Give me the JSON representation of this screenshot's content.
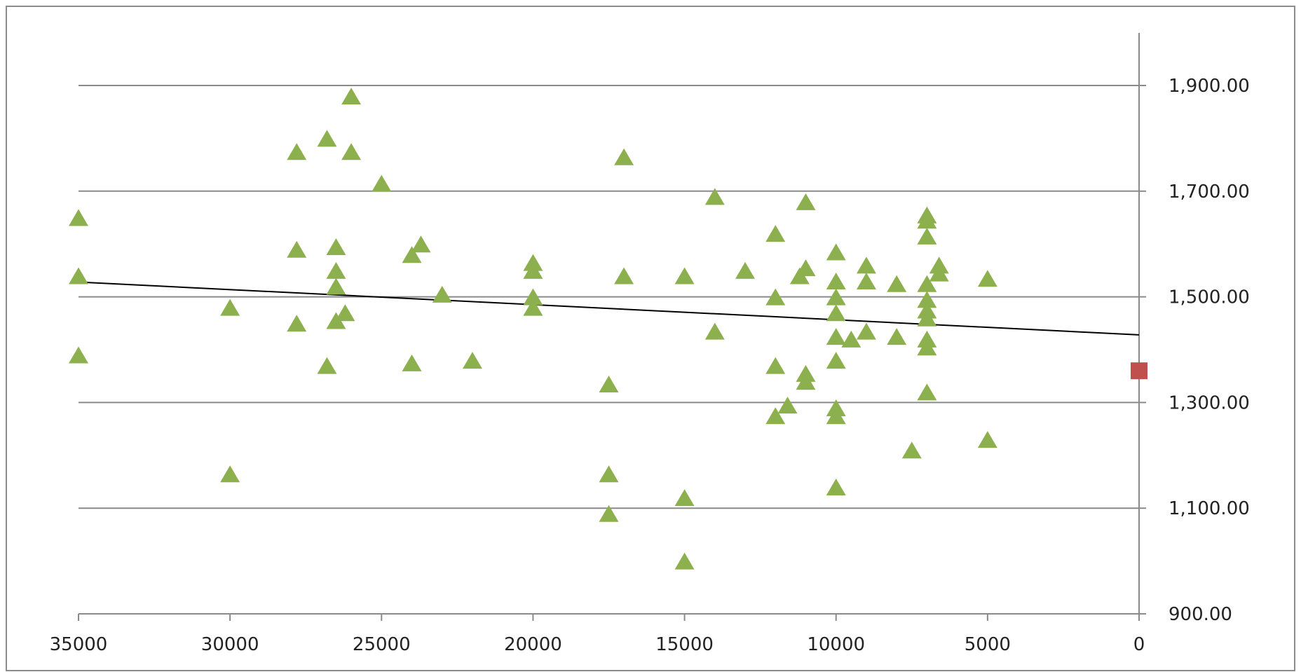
{
  "chart_data": {
    "type": "scatter",
    "title": "",
    "xlabel": "",
    "ylabel": "",
    "x_axis": {
      "min": 0,
      "max": 35000,
      "reversed": true,
      "ticks": [
        35000,
        30000,
        25000,
        20000,
        15000,
        10000,
        5000,
        0
      ],
      "tick_labels": [
        "35000",
        "30000",
        "25000",
        "20000",
        "15000",
        "10000",
        "5000",
        "0"
      ]
    },
    "y_axis": {
      "min": 900,
      "max": 2000,
      "position": "right",
      "ticks": [
        900,
        1100,
        1300,
        1500,
        1700,
        1900
      ],
      "tick_labels": [
        "900.00",
        "1,100.00",
        "1,300.00",
        "1,500.00",
        "1,700.00",
        "1,900.00"
      ]
    },
    "grid": true,
    "legend": "none",
    "series": [
      {
        "marker": "triangle",
        "color": "#8db04e",
        "points": [
          [
            35000,
            1650
          ],
          [
            35000,
            1540
          ],
          [
            35000,
            1390
          ],
          [
            30000,
            1480
          ],
          [
            30000,
            1165
          ],
          [
            27800,
            1775
          ],
          [
            27800,
            1590
          ],
          [
            27800,
            1450
          ],
          [
            26800,
            1800
          ],
          [
            26800,
            1370
          ],
          [
            26500,
            1595
          ],
          [
            26500,
            1550
          ],
          [
            26500,
            1520
          ],
          [
            26500,
            1455
          ],
          [
            26200,
            1470
          ],
          [
            26000,
            1880
          ],
          [
            26000,
            1775
          ],
          [
            25000,
            1715
          ],
          [
            24000,
            1580
          ],
          [
            24000,
            1375
          ],
          [
            23700,
            1600
          ],
          [
            23000,
            1505
          ],
          [
            22000,
            1380
          ],
          [
            20000,
            1565
          ],
          [
            20000,
            1550
          ],
          [
            20000,
            1500
          ],
          [
            20000,
            1480
          ],
          [
            17500,
            1335
          ],
          [
            17500,
            1165
          ],
          [
            17500,
            1090
          ],
          [
            17000,
            1765
          ],
          [
            17000,
            1540
          ],
          [
            15000,
            1540
          ],
          [
            15000,
            1120
          ],
          [
            15000,
            1000
          ],
          [
            14000,
            1690
          ],
          [
            14000,
            1435
          ],
          [
            13000,
            1550
          ],
          [
            12000,
            1620
          ],
          [
            12000,
            1500
          ],
          [
            12000,
            1370
          ],
          [
            12000,
            1275
          ],
          [
            11600,
            1295
          ],
          [
            11200,
            1540
          ],
          [
            11000,
            1680
          ],
          [
            11000,
            1555
          ],
          [
            11000,
            1355
          ],
          [
            11000,
            1340
          ],
          [
            10000,
            1585
          ],
          [
            10000,
            1530
          ],
          [
            10000,
            1500
          ],
          [
            10000,
            1470
          ],
          [
            10000,
            1425
          ],
          [
            10000,
            1380
          ],
          [
            10000,
            1290
          ],
          [
            10000,
            1275
          ],
          [
            10000,
            1140
          ],
          [
            9500,
            1420
          ],
          [
            9000,
            1560
          ],
          [
            9000,
            1530
          ],
          [
            9000,
            1435
          ],
          [
            8000,
            1525
          ],
          [
            8000,
            1425
          ],
          [
            7500,
            1210
          ],
          [
            7000,
            1655
          ],
          [
            7000,
            1645
          ],
          [
            7000,
            1615
          ],
          [
            7000,
            1525
          ],
          [
            7000,
            1495
          ],
          [
            7000,
            1475
          ],
          [
            7000,
            1460
          ],
          [
            7000,
            1420
          ],
          [
            7000,
            1405
          ],
          [
            7000,
            1320
          ],
          [
            6600,
            1560
          ],
          [
            6600,
            1545
          ],
          [
            5000,
            1535
          ],
          [
            5000,
            1230
          ]
        ]
      },
      {
        "marker": "square",
        "color": "#c0504d",
        "points": [
          [
            0,
            1360
          ]
        ]
      }
    ],
    "trendline": {
      "type": "linear",
      "color": "#000000",
      "x": [
        35000,
        0
      ],
      "y": [
        1528,
        1428
      ]
    }
  }
}
